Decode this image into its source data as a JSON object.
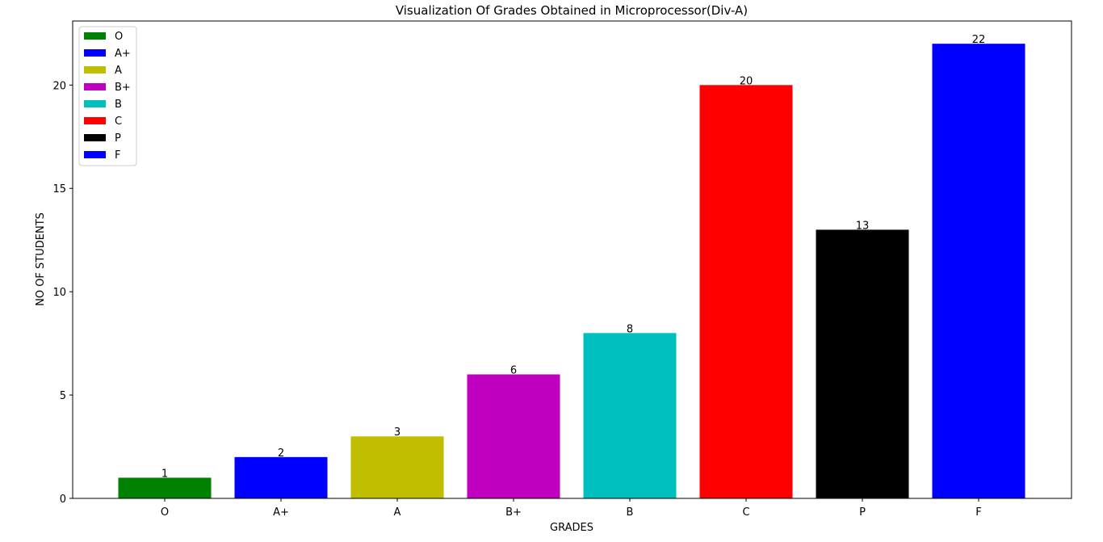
{
  "chart_data": {
    "type": "bar",
    "title": "Visualization Of Grades Obtained in Microprocessor(Div-A)",
    "xlabel": "GRADES",
    "ylabel": "NO OF STUDENTS",
    "categories": [
      "O",
      "A+",
      "A",
      "B+",
      "B",
      "C",
      "P",
      "F"
    ],
    "values": [
      1,
      2,
      3,
      6,
      8,
      20,
      13,
      22
    ],
    "colors": [
      "#008000",
      "#0000ff",
      "#bfbf00",
      "#bf00bf",
      "#00bfbf",
      "#ff0000",
      "#000000",
      "#0000ff"
    ],
    "yticks": [
      0,
      5,
      10,
      15,
      20
    ],
    "ylim": [
      0,
      23.1
    ],
    "grid": false,
    "legend": {
      "placement": "top-left",
      "entries": [
        "O",
        "A+",
        "A",
        "B+",
        "B",
        "C",
        "P",
        "F"
      ]
    }
  }
}
